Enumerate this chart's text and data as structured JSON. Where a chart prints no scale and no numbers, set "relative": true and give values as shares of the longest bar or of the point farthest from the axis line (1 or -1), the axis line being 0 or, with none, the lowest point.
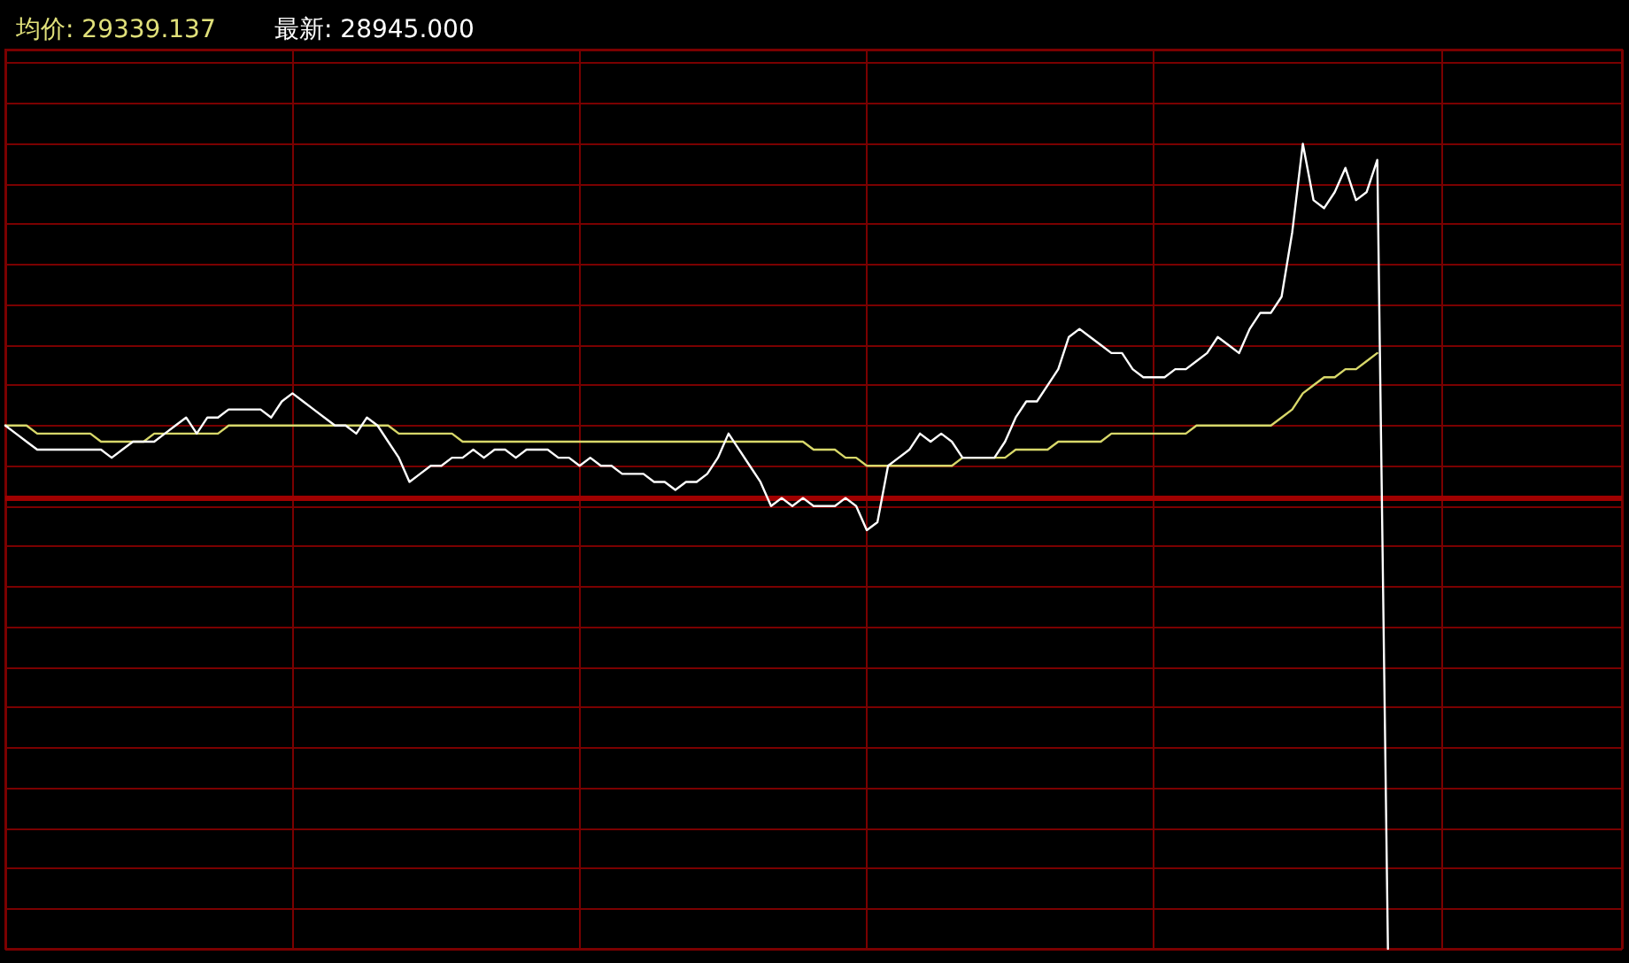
{
  "chart_data": {
    "type": "line",
    "title": "均价: 29339.137",
    "subtitle": "最新: 28945.000",
    "relative": true,
    "grid": true,
    "marker": "none",
    "line_style": "solid",
    "categories": [
      null,
      null,
      null,
      null,
      null,
      null,
      null,
      null,
      null,
      null,
      null,
      null,
      null,
      null,
      null,
      null,
      null,
      null,
      null,
      null,
      null,
      null,
      null,
      null,
      null,
      null,
      null,
      null,
      null,
      null,
      null,
      null,
      null,
      null,
      null,
      null,
      null,
      null,
      null,
      null,
      null,
      null,
      null,
      null,
      null,
      null,
      null,
      null,
      null,
      null,
      null,
      null,
      null,
      null,
      null,
      null,
      null,
      null,
      null,
      null,
      null,
      null,
      null,
      null,
      null,
      null,
      null,
      null,
      null,
      null,
      null,
      null,
      null,
      null,
      null,
      null,
      null,
      null,
      null,
      null,
      null,
      null,
      null,
      null,
      null,
      null,
      null,
      null,
      null,
      null,
      null,
      null,
      null,
      null,
      null,
      null,
      null,
      null,
      null,
      null,
      null,
      null,
      null,
      null,
      null,
      null,
      null,
      null,
      null,
      null,
      null,
      null,
      null,
      null,
      null,
      null,
      null,
      null,
      null,
      null,
      null,
      null,
      null,
      null,
      null,
      null,
      null,
      null,
      null,
      null,
      null,
      null,
      null,
      null,
      null,
      null,
      null,
      null,
      null,
      null,
      null,
      null,
      null,
      null,
      null,
      null,
      null,
      null,
      null,
      null,
      null,
      null,
      null
    ],
    "series": [
      {
        "color": "#ffffff",
        "values": [
          0.65,
          0.64,
          0.63,
          0.62,
          0.62,
          0.62,
          0.62,
          0.62,
          0.62,
          0.62,
          0.61,
          0.62,
          0.63,
          0.63,
          0.63,
          0.64,
          0.65,
          0.66,
          0.64,
          0.66,
          0.66,
          0.67,
          0.67,
          0.67,
          0.67,
          0.66,
          0.68,
          0.69,
          0.68,
          0.67,
          0.66,
          0.65,
          0.65,
          0.64,
          0.66,
          0.65,
          0.63,
          0.61,
          0.58,
          0.59,
          0.6,
          0.6,
          0.61,
          0.61,
          0.62,
          0.61,
          0.62,
          0.62,
          0.61,
          0.62,
          0.62,
          0.62,
          0.61,
          0.61,
          0.6,
          0.61,
          0.6,
          0.6,
          0.59,
          0.59,
          0.59,
          0.58,
          0.58,
          0.57,
          0.58,
          0.58,
          0.59,
          0.61,
          0.64,
          0.62,
          0.6,
          0.58,
          0.55,
          0.56,
          0.55,
          0.56,
          0.55,
          0.55,
          0.55,
          0.56,
          0.55,
          0.52,
          0.53,
          0.6,
          0.61,
          0.62,
          0.64,
          0.63,
          0.64,
          0.63,
          0.61,
          0.61,
          0.61,
          0.61,
          0.63,
          0.66,
          0.68,
          0.68,
          0.7,
          0.72,
          0.76,
          0.77,
          0.76,
          0.75,
          0.74,
          0.74,
          0.72,
          0.71,
          0.71,
          0.71,
          0.72,
          0.72,
          0.73,
          0.74,
          0.76,
          0.75,
          0.74,
          0.77,
          0.79,
          0.79,
          0.81,
          0.89,
          1,
          0.93,
          0.92,
          0.94,
          0.97,
          0.93,
          0.94,
          0.98,
          0,
          null,
          null,
          null,
          null,
          null,
          null,
          null,
          null,
          null,
          null,
          null,
          null,
          null,
          null,
          null,
          null,
          null,
          null,
          null,
          null,
          null,
          null
        ]
      },
      {
        "color": "#d8d86a",
        "values": [
          0.65,
          0.65,
          0.65,
          0.64,
          0.64,
          0.64,
          0.64,
          0.64,
          0.64,
          0.63,
          0.63,
          0.63,
          0.63,
          0.63,
          0.64,
          0.64,
          0.64,
          0.64,
          0.64,
          0.64,
          0.64,
          0.65,
          0.65,
          0.65,
          0.65,
          0.65,
          0.65,
          0.65,
          0.65,
          0.65,
          0.65,
          0.65,
          0.65,
          0.65,
          0.65,
          0.65,
          0.65,
          0.64,
          0.64,
          0.64,
          0.64,
          0.64,
          0.64,
          0.63,
          0.63,
          0.63,
          0.63,
          0.63,
          0.63,
          0.63,
          0.63,
          0.63,
          0.63,
          0.63,
          0.63,
          0.63,
          0.63,
          0.63,
          0.63,
          0.63,
          0.63,
          0.63,
          0.63,
          0.63,
          0.63,
          0.63,
          0.63,
          0.63,
          0.63,
          0.63,
          0.63,
          0.63,
          0.63,
          0.63,
          0.63,
          0.63,
          0.62,
          0.62,
          0.62,
          0.61,
          0.61,
          0.6,
          0.6,
          0.6,
          0.6,
          0.6,
          0.6,
          0.6,
          0.6,
          0.6,
          0.61,
          0.61,
          0.61,
          0.61,
          0.61,
          0.62,
          0.62,
          0.62,
          0.62,
          0.63,
          0.63,
          0.63,
          0.63,
          0.63,
          0.64,
          0.64,
          0.64,
          0.64,
          0.64,
          0.64,
          0.64,
          0.64,
          0.65,
          0.65,
          0.65,
          0.65,
          0.65,
          0.65,
          0.65,
          0.65,
          0.66,
          0.67,
          0.69,
          0.7,
          0.71,
          0.71,
          0.72,
          0.72,
          0.73,
          0.74,
          null,
          null,
          null,
          null,
          null,
          null,
          null,
          null,
          null,
          null,
          null,
          null,
          null,
          null,
          null,
          null,
          null,
          null,
          null,
          null,
          null,
          null,
          null
        ]
      }
    ],
    "ref_lines": [
      {
        "axis": "y",
        "value": 0.56,
        "color": "#a00000"
      }
    ]
  }
}
